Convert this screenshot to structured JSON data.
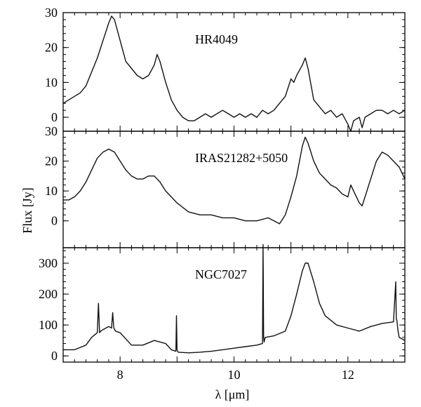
{
  "chart_data": [
    {
      "type": "line",
      "panel_label": "HR4049",
      "xlim": [
        7,
        13
      ],
      "ylim": [
        -4,
        30
      ],
      "yticks": [
        0,
        10,
        20,
        30
      ],
      "series": [
        {
          "x": [
            7.0,
            7.1,
            7.2,
            7.3,
            7.4,
            7.5,
            7.6,
            7.7,
            7.8,
            7.85,
            7.9,
            8.0,
            8.1,
            8.2,
            8.3,
            8.4,
            8.5,
            8.6,
            8.65,
            8.7,
            8.8,
            8.9,
            9.0,
            9.1,
            9.2,
            9.3,
            9.4,
            9.5,
            9.6,
            9.7,
            9.8,
            9.9,
            10.0,
            10.1,
            10.2,
            10.3,
            10.4,
            10.5,
            10.6,
            10.7,
            10.8,
            10.9,
            11.0,
            11.05,
            11.1,
            11.2,
            11.25,
            11.3,
            11.4,
            11.5,
            11.6,
            11.7,
            11.8,
            11.9,
            12.0,
            12.05,
            12.1,
            12.2,
            12.25,
            12.3,
            12.4,
            12.5,
            12.6,
            12.7,
            12.8,
            12.9,
            13.0
          ],
          "y": [
            4,
            5,
            6,
            7,
            9,
            13,
            17,
            22,
            27,
            29,
            28,
            22,
            16,
            14,
            12,
            11,
            12,
            15,
            18,
            16,
            10,
            5,
            2,
            0,
            -1,
            -1,
            0,
            1,
            0,
            1,
            2,
            1,
            0,
            1,
            0,
            1,
            0,
            2,
            1,
            2,
            4,
            6,
            11,
            10,
            12,
            15,
            17,
            14,
            5,
            3,
            1,
            2,
            0,
            1,
            -2,
            -4,
            -1,
            0,
            -3,
            0,
            1,
            2,
            2,
            1,
            2,
            1,
            2
          ]
        }
      ]
    },
    {
      "type": "line",
      "panel_label": "IRAS21282+5050",
      "xlim": [
        7,
        13
      ],
      "ylim": [
        -9,
        30
      ],
      "yticks": [
        0,
        10,
        20,
        30
      ],
      "series": [
        {
          "x": [
            7.0,
            7.1,
            7.2,
            7.3,
            7.4,
            7.5,
            7.6,
            7.7,
            7.8,
            7.9,
            8.0,
            8.1,
            8.2,
            8.3,
            8.4,
            8.5,
            8.6,
            8.7,
            8.8,
            8.9,
            9.0,
            9.2,
            9.4,
            9.6,
            9.8,
            10.0,
            10.2,
            10.4,
            10.6,
            10.8,
            10.9,
            11.0,
            11.1,
            11.2,
            11.25,
            11.3,
            11.4,
            11.5,
            11.6,
            11.7,
            11.8,
            11.9,
            12.0,
            12.05,
            12.1,
            12.2,
            12.25,
            12.3,
            12.4,
            12.5,
            12.6,
            12.7,
            12.8,
            12.9,
            13.0
          ],
          "y": [
            7,
            7,
            8,
            10,
            13,
            17,
            21,
            23,
            24,
            23,
            20,
            17,
            15,
            14,
            14,
            15,
            15,
            13,
            10,
            8,
            6,
            3,
            2,
            2,
            1,
            1,
            0,
            0,
            1,
            -1,
            2,
            8,
            15,
            25,
            28,
            26,
            20,
            16,
            14,
            12,
            11,
            9,
            8,
            12,
            10,
            6,
            5,
            8,
            14,
            20,
            23,
            22,
            20,
            18,
            14
          ]
        }
      ]
    },
    {
      "type": "line",
      "panel_label": "NGC7027",
      "xlim": [
        7,
        13
      ],
      "ylim": [
        -20,
        350
      ],
      "yticks": [
        0,
        100,
        200,
        300
      ],
      "series": [
        {
          "x": [
            7.0,
            7.2,
            7.4,
            7.5,
            7.6,
            7.62,
            7.64,
            7.66,
            7.7,
            7.8,
            7.85,
            7.87,
            7.89,
            7.92,
            8.0,
            8.2,
            8.4,
            8.6,
            8.8,
            8.9,
            8.98,
            8.99,
            9.0,
            9.01,
            9.02,
            9.2,
            9.4,
            9.6,
            9.8,
            10.0,
            10.2,
            10.4,
            10.5,
            10.51,
            10.52,
            10.53,
            10.54,
            10.55,
            10.7,
            10.9,
            11.0,
            11.1,
            11.2,
            11.25,
            11.3,
            11.4,
            11.5,
            11.6,
            11.8,
            12.0,
            12.2,
            12.4,
            12.6,
            12.8,
            12.84,
            12.85,
            12.86,
            12.88,
            12.9,
            13.0
          ],
          "y": [
            20,
            20,
            35,
            60,
            75,
            170,
            75,
            80,
            85,
            95,
            90,
            140,
            90,
            80,
            75,
            35,
            35,
            50,
            40,
            20,
            15,
            130,
            20,
            15,
            12,
            10,
            12,
            15,
            20,
            25,
            30,
            35,
            40,
            360,
            60,
            45,
            55,
            60,
            65,
            80,
            130,
            200,
            275,
            300,
            300,
            240,
            170,
            130,
            100,
            90,
            80,
            95,
            105,
            110,
            240,
            120,
            115,
            80,
            60,
            50
          ]
        }
      ]
    }
  ],
  "x_axis": {
    "label": "λ [μm]",
    "ticks": [
      8,
      10,
      12
    ],
    "minor_step": 0.2
  },
  "y_axis": {
    "label": "Flux [Jy]"
  }
}
